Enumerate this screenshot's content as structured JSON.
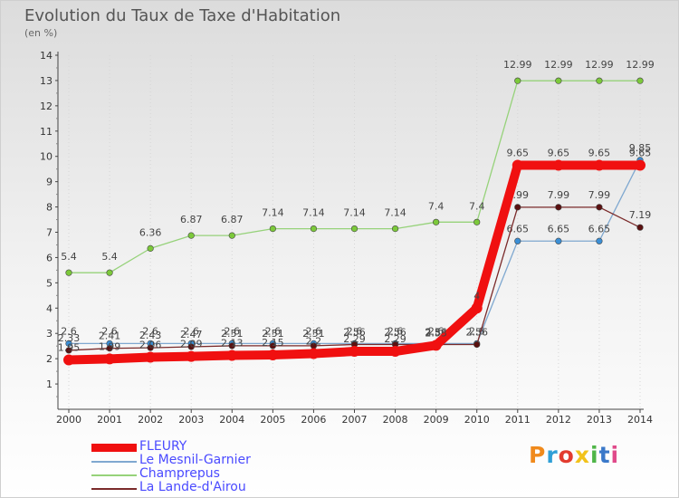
{
  "header": {
    "title": "Evolution du Taux de Taxe d'Habitation",
    "unit": "(en %)"
  },
  "logo": {
    "letters": [
      "P",
      "r",
      "o",
      "x",
      "i",
      "t",
      "i"
    ],
    "colors": [
      "#f08a1c",
      "#2f9fd6",
      "#e23b2e",
      "#f2c21a",
      "#4fb548",
      "#3a78c9",
      "#e04a8a"
    ]
  },
  "chart_data": {
    "type": "line",
    "title": "Evolution du Taux de Taxe d'Habitation",
    "xlabel": "",
    "ylabel": "(en %)",
    "ylim": [
      0,
      14
    ],
    "y_ticks": [
      "1",
      "2",
      "3",
      "4",
      "5",
      "6",
      "7",
      "8",
      "9",
      "10",
      "11",
      "12",
      "13",
      "14"
    ],
    "x": [
      "2000",
      "2001",
      "2002",
      "2003",
      "2004",
      "2005",
      "2006",
      "2007",
      "2008",
      "2009",
      "2010",
      "2011",
      "2012",
      "2013",
      "2014"
    ],
    "legend_position": "bottom-left",
    "series": [
      {
        "name": "Champrepus",
        "color": "#96d27a",
        "marker": "#7cc93a",
        "values": [
          5.4,
          5.4,
          6.36,
          6.87,
          6.87,
          7.14,
          7.14,
          7.14,
          7.14,
          7.4,
          7.4,
          12.99,
          12.99,
          12.99,
          12.99
        ],
        "labels": [
          "5.4",
          "5.4",
          "6.36",
          "6.87",
          "6.87",
          "7.14",
          "7.14",
          "7.14",
          "7.14",
          "7.4",
          "7.4",
          "12.99",
          "12.99",
          "12.99",
          "12.99"
        ]
      },
      {
        "name": "Le Mesnil-Garnier",
        "color": "#7fa8d0",
        "marker": "#3a8fd6",
        "values": [
          2.6,
          2.6,
          2.6,
          2.6,
          2.6,
          2.6,
          2.6,
          2.6,
          2.6,
          2.6,
          2.6,
          6.65,
          6.65,
          6.65,
          9.85
        ],
        "labels": [
          "2.6",
          "2.6",
          "2.6",
          "2.6",
          "2.6",
          "2.6",
          "2.6",
          "2.6",
          "2.6",
          "2.6",
          "2.6",
          "6.65",
          "6.65",
          "6.65",
          "9.85"
        ]
      },
      {
        "name": "La Lande-d'Airou",
        "color": "#7a2a2a",
        "marker": "#5a1010",
        "values": [
          2.33,
          2.41,
          2.43,
          2.47,
          2.51,
          2.51,
          2.51,
          2.56,
          2.56,
          2.56,
          2.56,
          7.99,
          7.99,
          7.99,
          7.19
        ],
        "labels": [
          "2.33",
          "2.41",
          "2.43",
          "2.47",
          "2.51",
          "2.51",
          "2.51",
          "2.56",
          "2.56",
          "2.56",
          "2.56",
          "7.99",
          "7.99",
          "7.99",
          "7.19"
        ]
      },
      {
        "name": "FLEURY",
        "color": "#f01010",
        "marker": "#f01010",
        "values": [
          1.95,
          1.99,
          2.06,
          2.09,
          2.13,
          2.15,
          2.2,
          2.29,
          2.29,
          2.53,
          4.0,
          9.65,
          9.65,
          9.65,
          9.65
        ],
        "labels": [
          "1.95",
          "1.99",
          "2.06",
          "2.09",
          "2.13",
          "2.15",
          "2.2",
          "2.29",
          "2.29",
          "2.53",
          "4",
          "9.65",
          "9.65",
          "9.65",
          "9.65"
        ]
      }
    ],
    "legend_order": [
      "FLEURY",
      "Le Mesnil-Garnier",
      "Champrepus",
      "La Lande-d'Airou"
    ]
  }
}
